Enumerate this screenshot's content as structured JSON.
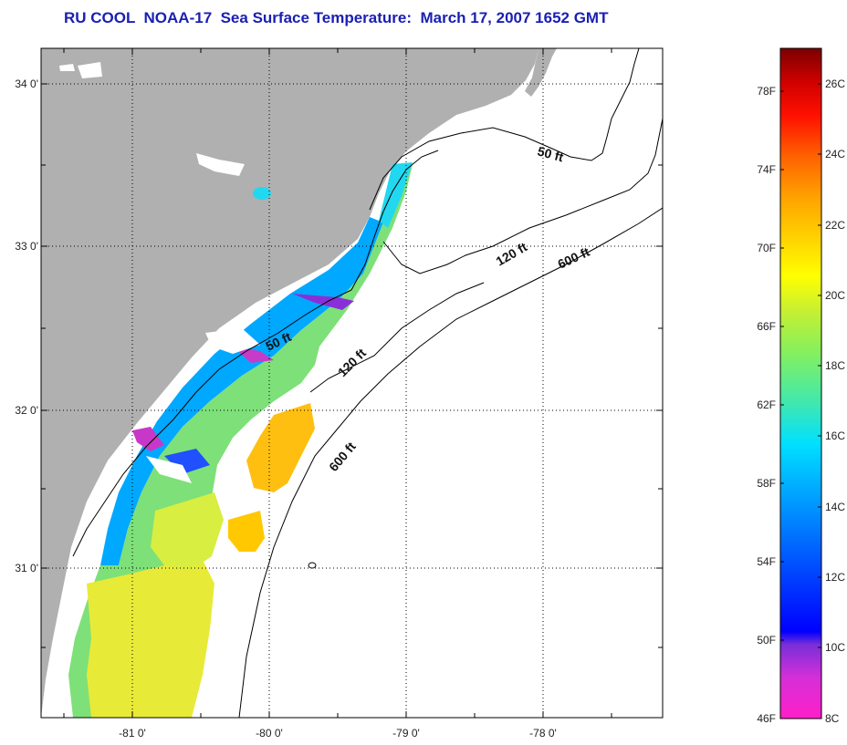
{
  "title": "RU COOL  NOAA-17  Sea Surface Temperature:  March 17, 2007 1652 GMT",
  "map": {
    "lat_ticks": [
      "34 0'",
      "33 0'",
      "32 0'",
      "31 0'"
    ],
    "lon_ticks": [
      "-81 0'",
      "-80 0'",
      "-79 0'",
      "-78 0'"
    ],
    "contours": [
      {
        "label": "50 ft"
      },
      {
        "label": "120 ft"
      },
      {
        "label": "600 ft"
      },
      {
        "label": "50 ft"
      },
      {
        "label": "120 ft"
      },
      {
        "label": "600 ft"
      }
    ],
    "colors": {
      "land": "#b0b0b0",
      "ocean_nodata": "#ffffff",
      "frame": "#000000"
    }
  },
  "colorbar": {
    "fahrenheit_labels": [
      "78F",
      "74F",
      "70F",
      "66F",
      "62F",
      "58F",
      "54F",
      "50F",
      "46F"
    ],
    "celsius_labels": [
      "26C",
      "24C",
      "22C",
      "20C",
      "18C",
      "16C",
      "14C",
      "12C",
      "10C",
      "8C"
    ],
    "range_c": [
      8,
      27
    ],
    "colors": [
      "#ff1fc8",
      "#d62fd8",
      "#7a2fd8",
      "#0000ff",
      "#0050ff",
      "#00a0ff",
      "#00e0ff",
      "#3fe8b0",
      "#88f05a",
      "#c8f030",
      "#ffff00",
      "#ffd000",
      "#ffa000",
      "#ff6000",
      "#ff1000",
      "#d00000",
      "#7a0000"
    ]
  }
}
